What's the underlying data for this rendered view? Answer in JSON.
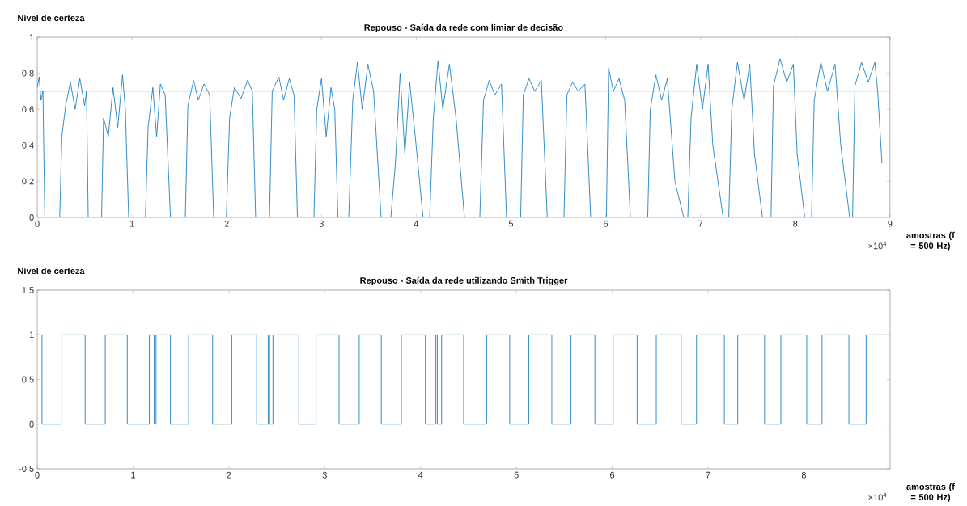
{
  "chart_data": [
    {
      "type": "line",
      "title": "Repouso - Saída da rede com limiar de decisão",
      "ylabel": "Nível de certeza",
      "xlabel": "amostras (f = 500 Hz)",
      "annotations": [
        "×10$^{4}$"
      ],
      "xlim": [
        0,
        9
      ],
      "ylim": [
        0,
        1
      ],
      "xticks": [
        0,
        1,
        2,
        3,
        4,
        5,
        6,
        7,
        8,
        9
      ],
      "yticks": [
        0,
        0.2,
        0.4,
        0.6,
        0.8,
        1
      ],
      "ref_lines": [
        {
          "axis": "y",
          "value": 0.7,
          "color": "#d95319"
        }
      ],
      "series": [
        {
          "color": "#0072bd",
          "x": [
            0,
            0.02,
            0.04,
            0.06,
            0.08,
            0.237,
            0.26,
            0.3,
            0.35,
            0.4,
            0.45,
            0.5,
            0.52,
            0.538,
            0.679,
            0.7,
            0.75,
            0.8,
            0.85,
            0.9,
            0.93,
            0.965,
            1.142,
            1.17,
            1.22,
            1.26,
            1.3,
            1.35,
            1.406,
            1.563,
            1.59,
            1.65,
            1.7,
            1.76,
            1.82,
            1.862,
            1.996,
            2.03,
            2.08,
            2.15,
            2.22,
            2.27,
            2.305,
            2.451,
            2.48,
            2.55,
            2.6,
            2.66,
            2.71,
            2.746,
            2.92,
            2.95,
            3.0,
            3.05,
            3.1,
            3.14,
            3.173,
            3.288,
            3.33,
            3.38,
            3.43,
            3.49,
            3.55,
            3.629,
            3.732,
            3.78,
            3.83,
            3.88,
            3.93,
            3.98,
            4.072,
            4.142,
            4.18,
            4.23,
            4.28,
            4.35,
            4.42,
            4.509,
            4.671,
            4.71,
            4.77,
            4.83,
            4.9,
            4.953,
            5.102,
            5.13,
            5.19,
            5.25,
            5.32,
            5.383,
            5.559,
            5.59,
            5.65,
            5.71,
            5.78,
            5.841,
            6.007,
            6.03,
            6.08,
            6.14,
            6.2,
            6.26,
            6.443,
            6.47,
            6.53,
            6.59,
            6.65,
            6.73,
            6.823,
            6.866,
            6.9,
            6.96,
            7.02,
            7.08,
            7.13,
            7.239,
            7.298,
            7.33,
            7.39,
            7.46,
            7.52,
            7.57,
            7.654,
            7.744,
            7.77,
            7.84,
            7.91,
            7.98,
            8.02,
            8.1,
            8.172,
            8.2,
            8.27,
            8.34,
            8.42,
            8.48,
            8.574,
            8.605,
            8.63,
            8.7,
            8.77,
            8.84,
            8.87,
            8.915
          ],
          "values": [
            0.72,
            0.78,
            0.65,
            0.7,
            0,
            0,
            0.45,
            0.62,
            0.75,
            0.6,
            0.77,
            0.62,
            0.7,
            0,
            0,
            0.55,
            0.45,
            0.72,
            0.5,
            0.79,
            0.6,
            0,
            0,
            0.5,
            0.72,
            0.45,
            0.74,
            0.68,
            0,
            0,
            0.62,
            0.76,
            0.65,
            0.74,
            0.68,
            0,
            0,
            0.55,
            0.72,
            0.66,
            0.76,
            0.7,
            0,
            0,
            0.7,
            0.78,
            0.65,
            0.77,
            0.68,
            0,
            0,
            0.6,
            0.77,
            0.45,
            0.72,
            0.6,
            0,
            0,
            0.65,
            0.86,
            0.6,
            0.85,
            0.7,
            0,
            0,
            0.3,
            0.8,
            0.35,
            0.75,
            0.5,
            0,
            0,
            0.55,
            0.87,
            0.6,
            0.85,
            0.55,
            0,
            0,
            0.65,
            0.76,
            0.68,
            0.74,
            0,
            0,
            0.68,
            0.77,
            0.7,
            0.76,
            0,
            0,
            0.68,
            0.75,
            0.7,
            0.74,
            0,
            0,
            0.83,
            0.7,
            0.77,
            0.65,
            0,
            0,
            0.6,
            0.79,
            0.65,
            0.77,
            0.2,
            0,
            0,
            0.55,
            0.85,
            0.6,
            0.85,
            0.4,
            0,
            0,
            0.6,
            0.86,
            0.65,
            0.85,
            0.35,
            0,
            0,
            0.73,
            0.88,
            0.75,
            0.85,
            0.35,
            0,
            0,
            0.65,
            0.86,
            0.7,
            0.85,
            0.4,
            0,
            0,
            0.73,
            0.86,
            0.75,
            0.86,
            0.7,
            0.3
          ]
        }
      ]
    },
    {
      "type": "step",
      "title": "Repouso - Saída da rede utilizando Smith Trigger",
      "ylabel": "Nível de certeza",
      "xlabel": "amostras (f = 500 Hz)",
      "annotations": [
        "×10$^{4}$"
      ],
      "xlim": [
        0,
        8.9
      ],
      "ylim": [
        -0.5,
        1.5
      ],
      "xticks": [
        0,
        1,
        2,
        3,
        4,
        5,
        6,
        7,
        8
      ],
      "yticks": [
        -0.5,
        0,
        0.5,
        1,
        1.5
      ],
      "series": [
        {
          "color": "#0072bd",
          "x": [
            0,
            0.05,
            0.25,
            0.5,
            0.71,
            0.94,
            1.17,
            1.22,
            1.24,
            1.39,
            1.58,
            1.83,
            2.03,
            2.29,
            2.41,
            2.425,
            2.46,
            2.73,
            2.91,
            3.15,
            3.36,
            3.59,
            3.8,
            4.05,
            4.16,
            4.175,
            4.22,
            4.45,
            4.69,
            4.93,
            5.13,
            5.37,
            5.57,
            5.82,
            6.01,
            6.26,
            6.46,
            6.72,
            6.88,
            7.17,
            7.31,
            7.59,
            7.76,
            8.03,
            8.19,
            8.47,
            8.65,
            8.9
          ],
          "values": [
            1,
            0,
            1,
            0,
            1,
            0,
            1,
            0,
            1,
            0,
            1,
            0,
            1,
            0,
            1,
            0,
            1,
            0,
            1,
            0,
            1,
            0,
            1,
            0,
            1,
            0,
            1,
            0,
            1,
            0,
            1,
            0,
            1,
            0,
            1,
            0,
            1,
            0,
            1,
            0,
            1,
            0,
            1,
            0,
            1,
            0,
            1,
            1
          ]
        }
      ]
    }
  ]
}
